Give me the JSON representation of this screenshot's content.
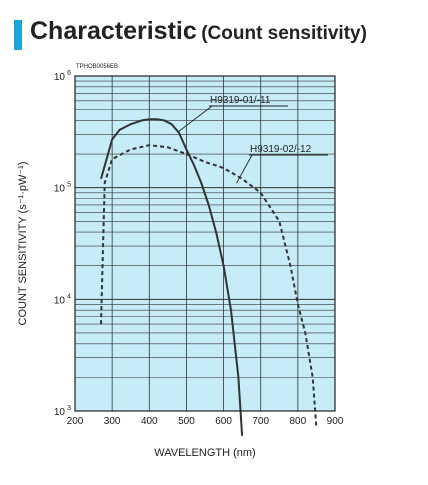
{
  "header": {
    "title": "Characteristic",
    "subtitle": "(Count sensitivity)",
    "accent_color": "#1aa6d8"
  },
  "chart_data": {
    "type": "line",
    "doc_code": "TPHOB0056EB",
    "xlabel": "WAVELENGTH (nm)",
    "ylabel": "COUNT SENSITIVITY (s⁻¹·pW⁻¹)",
    "xlim": [
      200,
      900
    ],
    "ylim": [
      1000,
      1000000
    ],
    "y_scale": "log",
    "grid": true,
    "plot_background": "#c6ecf7",
    "x_ticks": [
      "200",
      "300",
      "400",
      "500",
      "600",
      "700",
      "800",
      "900"
    ],
    "y_ticks": [
      {
        "base": "10",
        "exp": "3"
      },
      {
        "base": "10",
        "exp": "4"
      },
      {
        "base": "10",
        "exp": "5"
      },
      {
        "base": "10",
        "exp": "6"
      }
    ],
    "series": [
      {
        "name": "H9319-01/-11",
        "style": "solid",
        "x": [
          270,
          285,
          300,
          320,
          350,
          380,
          400,
          420,
          440,
          460,
          480,
          500,
          520,
          540,
          560,
          580,
          600,
          620,
          640,
          650
        ],
        "y": [
          120000,
          180000,
          270000,
          330000,
          370000,
          400000,
          410000,
          410000,
          400000,
          370000,
          310000,
          220000,
          160000,
          110000,
          70000,
          40000,
          20000,
          8000,
          2000,
          600
        ]
      },
      {
        "name": "H9319-02/-12",
        "style": "dashed",
        "x": [
          270,
          280,
          300,
          350,
          400,
          450,
          500,
          550,
          600,
          650,
          700,
          750,
          780,
          800,
          820,
          840,
          850
        ],
        "y": [
          6000,
          110000,
          180000,
          220000,
          240000,
          230000,
          200000,
          170000,
          150000,
          120000,
          90000,
          50000,
          20000,
          9000,
          5000,
          2000,
          700
        ]
      }
    ]
  }
}
